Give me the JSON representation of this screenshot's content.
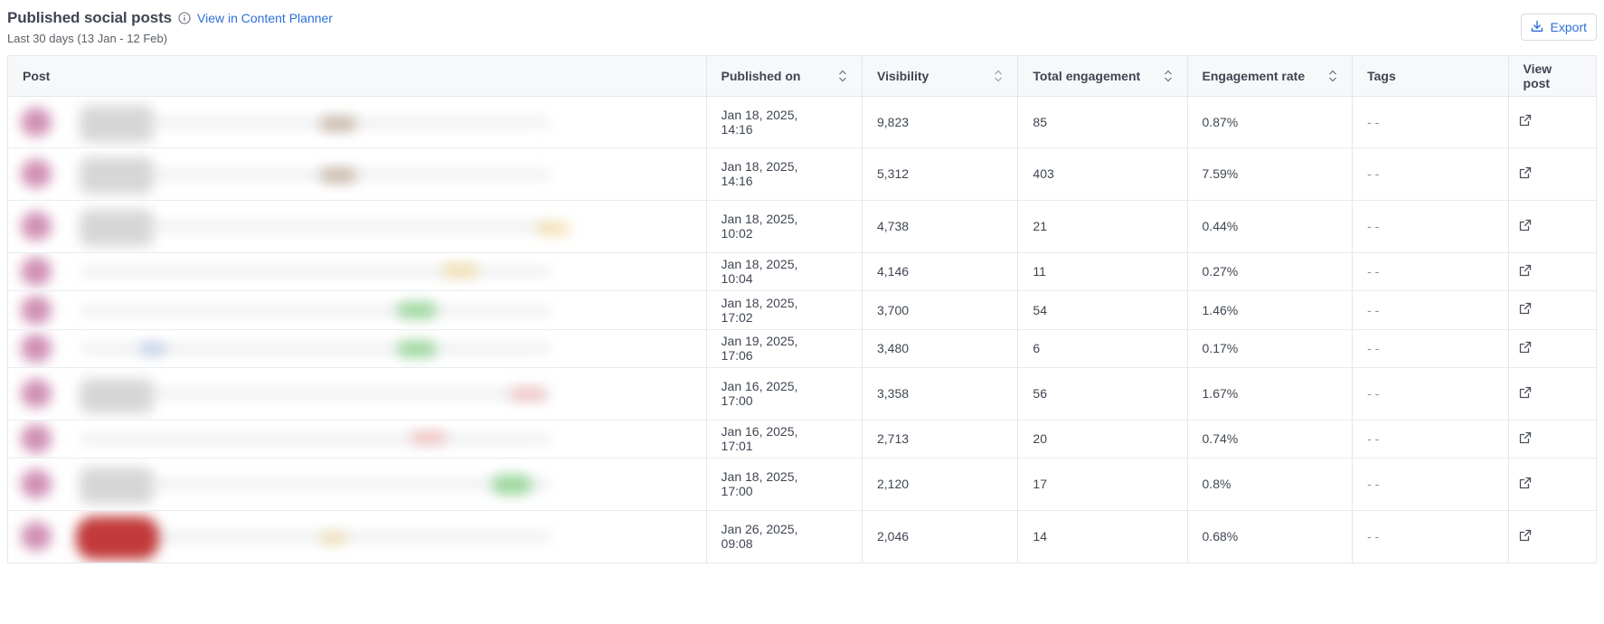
{
  "header": {
    "title": "Published social posts",
    "link_label": "View in Content Planner",
    "subtitle": "Last 30 days (13 Jan - 12 Feb)",
    "export_label": "Export"
  },
  "table": {
    "columns": {
      "post": "Post",
      "published_on": "Published on",
      "visibility": "Visibility",
      "total_engagement": "Total engagement",
      "engagement_rate": "Engagement rate",
      "tags": "Tags",
      "view_post": "View post"
    },
    "rows": [
      {
        "date_line1": "Jan 18, 2025,",
        "date_line2": "14:16",
        "visibility": "9,823",
        "engagement": "85",
        "rate": "0.87%",
        "tags": "- -"
      },
      {
        "date_line1": "Jan 18, 2025,",
        "date_line2": "14:16",
        "visibility": "5,312",
        "engagement": "403",
        "rate": "7.59%",
        "tags": "- -"
      },
      {
        "date_line1": "Jan 18, 2025,",
        "date_line2": "10:02",
        "visibility": "4,738",
        "engagement": "21",
        "rate": "0.44%",
        "tags": "- -"
      },
      {
        "date_line1": "Jan 18, 2025,",
        "date_line2": "10:04",
        "visibility": "4,146",
        "engagement": "11",
        "rate": "0.27%",
        "tags": "- -"
      },
      {
        "date_line1": "Jan 18, 2025,",
        "date_line2": "17:02",
        "visibility": "3,700",
        "engagement": "54",
        "rate": "1.46%",
        "tags": "- -"
      },
      {
        "date_line1": "Jan 19, 2025,",
        "date_line2": "17:06",
        "visibility": "3,480",
        "engagement": "6",
        "rate": "0.17%",
        "tags": "- -"
      },
      {
        "date_line1": "Jan 16, 2025,",
        "date_line2": "17:00",
        "visibility": "3,358",
        "engagement": "56",
        "rate": "1.67%",
        "tags": "- -"
      },
      {
        "date_line1": "Jan 16, 2025,",
        "date_line2": "17:01",
        "visibility": "2,713",
        "engagement": "20",
        "rate": "0.74%",
        "tags": "- -"
      },
      {
        "date_line1": "Jan 18, 2025,",
        "date_line2": "17:00",
        "visibility": "2,120",
        "engagement": "17",
        "rate": "0.8%",
        "tags": "- -"
      },
      {
        "date_line1": "Jan 26, 2025,",
        "date_line2": "09:08",
        "visibility": "2,046",
        "engagement": "14",
        "rate": "0.68%",
        "tags": "- -"
      }
    ]
  },
  "icons": {
    "info": "info-icon",
    "export": "download-icon",
    "sort": "sort-icon",
    "view": "external-link-icon"
  },
  "colors": {
    "link": "#2d6fd8",
    "header_bg": "#f7f8fa",
    "border": "#e2e6eb"
  }
}
